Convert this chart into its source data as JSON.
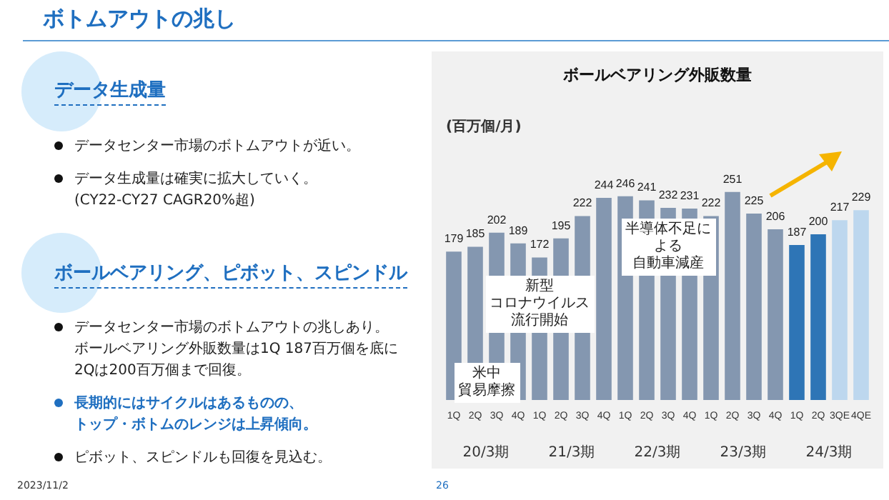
{
  "chart_data": {
    "type": "bar",
    "title": "ボールベアリング外販数量",
    "ylabel": "(百万個/月)",
    "categories": [
      "1Q",
      "2Q",
      "3Q",
      "4Q",
      "1Q",
      "2Q",
      "3Q",
      "4Q",
      "1Q",
      "2Q",
      "3Q",
      "4Q",
      "1Q",
      "2Q",
      "3Q",
      "4Q",
      "1Q",
      "2Q",
      "3QE",
      "4QE"
    ],
    "values": [
      179,
      185,
      202,
      189,
      172,
      195,
      222,
      244,
      246,
      241,
      232,
      231,
      222,
      251,
      225,
      206,
      187,
      200,
      217,
      229
    ],
    "colors": [
      "#8497b0",
      "#8497b0",
      "#8497b0",
      "#8497b0",
      "#8497b0",
      "#8497b0",
      "#8497b0",
      "#8497b0",
      "#8497b0",
      "#8497b0",
      "#8497b0",
      "#8497b0",
      "#8497b0",
      "#8497b0",
      "#8497b0",
      "#8497b0",
      "#2e75b6",
      "#2e75b6",
      "#bdd7ee",
      "#bdd7ee"
    ],
    "data_labels": true,
    "annotations": [
      "ボトムアウトの兆し",
      "データ生成量",
      "データセンター市場のボトムアウトが近い。",
      "データ生成量は確実に拡大していく。",
      "(CY22-CY27 CAGR20%超)",
      "ボールベアリング、ピボット、スピンドル",
      "データセンター市場のボトムアウトの兆しあり。",
      "ボールベアリング外販数量は1Q 187百万個を底に",
      "2Qは200百万個まで回復。",
      "長期的にはサイクルはあるものの、",
      "トップ・ボトムのレンジは上昇傾向。",
      "ピボット、スピンドルも回復を見込む。",
      "2023/11/2",
      "26",
      "20/3期",
      "21/3期",
      "22/3期",
      "23/3期",
      "24/3期",
      "米中",
      "貿易摩擦",
      "新型",
      "コロナウイルス",
      "流行開始",
      "半導体不足に",
      "よる",
      "自動車減産"
    ]
  }
}
